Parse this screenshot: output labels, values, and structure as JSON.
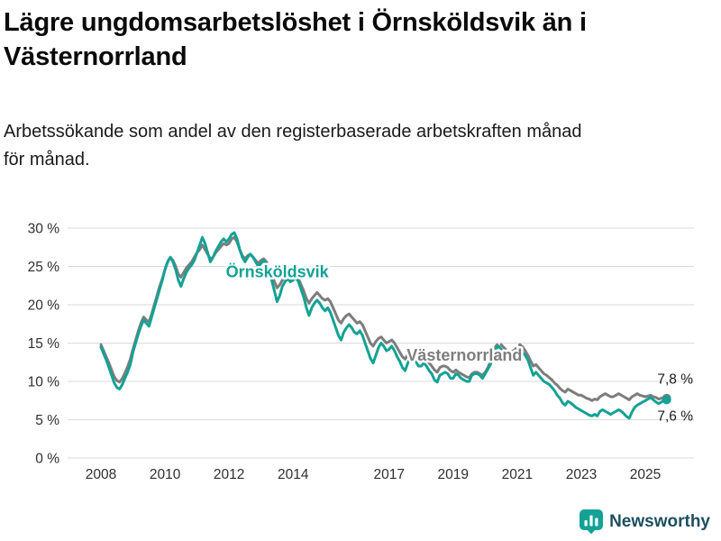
{
  "header": {
    "title": "Lägre ungdomsarbetslöshet i Örnsköldsvik än i Västernorrland",
    "subtitle": "Arbetssökande som andel av den registerbaserade arbetskraften månad för månad."
  },
  "footer": {
    "brand": "Newsworthy",
    "brand_color": "#1d4f60",
    "icon_color": "#14a295"
  },
  "chart_data": {
    "type": "line",
    "unit": "%",
    "cadence": "monthly",
    "x_start": {
      "year": 2008,
      "month": 1
    },
    "x_end": {
      "year": 2025,
      "month": 9
    },
    "ylim": [
      0,
      31.5
    ],
    "grid": "horizontal",
    "legend_position": "inline-labels",
    "yticks": [
      {
        "value": 0,
        "label": "0 %"
      },
      {
        "value": 5,
        "label": "5 %"
      },
      {
        "value": 10,
        "label": "10 %"
      },
      {
        "value": 15,
        "label": "15 %"
      },
      {
        "value": 20,
        "label": "20 %"
      },
      {
        "value": 25,
        "label": "25 %"
      },
      {
        "value": 30,
        "label": "30 %"
      }
    ],
    "xticks": [
      {
        "year": 2008,
        "label": "2008"
      },
      {
        "year": 2010,
        "label": "2010"
      },
      {
        "year": 2012,
        "label": "2012"
      },
      {
        "year": 2014,
        "label": "2014"
      },
      {
        "year": 2017,
        "label": "2017"
      },
      {
        "year": 2019,
        "label": "2019"
      },
      {
        "year": 2021,
        "label": "2021"
      },
      {
        "year": 2023,
        "label": "2023"
      },
      {
        "year": 2025,
        "label": "2025"
      }
    ],
    "annotations": [
      {
        "text": "Örnsköldsvik",
        "year": 2011.9,
        "value": 23.6,
        "color": "#13a295"
      },
      {
        "text": "Västernorrland",
        "year": 2017.55,
        "value": 12.7,
        "color": "#7d7d7d"
      }
    ],
    "series": [
      {
        "name": "Västernorrland",
        "color": "#7d7d7d",
        "end_label": "7,8 %",
        "dash_segment": [
          146,
          158
        ],
        "values": [
          14.8,
          14.0,
          13.2,
          12.4,
          11.5,
          10.6,
          10.1,
          9.9,
          10.4,
          11.1,
          11.9,
          12.9,
          14.2,
          15.4,
          16.6,
          17.6,
          18.4,
          18.0,
          17.8,
          18.8,
          20.0,
          21.2,
          22.4,
          23.4,
          24.6,
          25.6,
          26.2,
          25.8,
          25.0,
          24.0,
          23.6,
          24.2,
          24.8,
          25.2,
          25.6,
          26.2,
          26.8,
          27.2,
          27.8,
          27.2,
          26.6,
          26.0,
          26.2,
          26.8,
          27.2,
          27.6,
          28.0,
          27.8,
          28.0,
          28.6,
          28.8,
          28.2,
          27.2,
          26.4,
          26.0,
          26.4,
          26.6,
          26.2,
          25.8,
          25.4,
          25.8,
          26.0,
          25.6,
          24.8,
          24.0,
          23.0,
          22.2,
          22.6,
          23.2,
          23.6,
          23.8,
          23.4,
          23.6,
          23.8,
          23.4,
          22.6,
          21.8,
          20.8,
          20.2,
          20.8,
          21.2,
          21.6,
          21.2,
          20.8,
          20.6,
          20.8,
          20.4,
          19.6,
          18.8,
          18.0,
          17.6,
          18.2,
          18.6,
          18.8,
          18.4,
          18.0,
          17.6,
          17.8,
          17.4,
          16.6,
          15.8,
          15.0,
          14.6,
          15.2,
          15.6,
          15.8,
          15.4,
          15.0,
          15.2,
          15.4,
          15.0,
          14.4,
          13.8,
          13.2,
          12.9,
          13.5,
          13.8,
          13.8,
          13.4,
          13.0,
          13.0,
          13.2,
          12.9,
          12.4,
          12.0,
          11.5,
          11.2,
          11.8,
          12.0,
          12.0,
          11.8,
          11.4,
          11.2,
          11.5,
          11.2,
          11.0,
          10.8,
          10.6,
          10.5,
          11.0,
          11.2,
          11.2,
          11.0,
          10.8,
          11.2,
          11.8,
          12.6,
          13.8,
          14.6,
          15.0,
          14.8,
          14.4,
          14.1,
          13.9,
          13.9,
          14.1,
          14.5,
          14.8,
          14.5,
          14.0,
          13.4,
          12.7,
          12.0,
          12.2,
          11.8,
          11.4,
          11.0,
          10.8,
          10.5,
          10.2,
          9.8,
          9.5,
          9.1,
          8.8,
          8.6,
          9.0,
          8.8,
          8.6,
          8.4,
          8.2,
          8.2,
          8.0,
          7.8,
          7.7,
          7.5,
          7.7,
          7.6,
          8.0,
          8.2,
          8.4,
          8.2,
          8.0,
          8.0,
          8.2,
          8.4,
          8.2,
          8.0,
          7.8,
          7.6,
          8.0,
          8.2,
          8.4,
          8.2,
          8.1,
          8.0,
          8.1,
          8.2,
          8.0,
          7.9,
          7.7,
          7.8,
          7.9,
          7.8
        ]
      },
      {
        "name": "Örnsköldsvik",
        "color": "#13a295",
        "end_label": "7,6 %",
        "values": [
          14.5,
          13.6,
          12.8,
          11.8,
          10.8,
          9.8,
          9.2,
          9.0,
          9.6,
          10.4,
          11.2,
          12.2,
          13.8,
          15.0,
          16.2,
          17.2,
          18.0,
          17.6,
          17.2,
          18.4,
          19.6,
          20.8,
          22.0,
          23.2,
          24.6,
          25.6,
          26.2,
          25.6,
          24.6,
          23.2,
          22.4,
          23.4,
          24.2,
          24.8,
          25.2,
          25.8,
          26.8,
          27.8,
          28.8,
          28.0,
          26.8,
          25.6,
          26.2,
          27.0,
          27.6,
          28.2,
          28.6,
          28.2,
          28.6,
          29.2,
          29.4,
          28.6,
          27.2,
          26.2,
          25.6,
          26.2,
          26.6,
          26.2,
          25.6,
          25.0,
          25.4,
          25.8,
          25.2,
          24.2,
          23.2,
          21.8,
          20.4,
          21.2,
          22.4,
          23.0,
          23.4,
          23.0,
          23.2,
          23.6,
          23.0,
          22.0,
          21.0,
          19.6,
          18.6,
          19.6,
          20.2,
          20.6,
          20.2,
          19.6,
          19.2,
          19.6,
          19.0,
          18.0,
          17.0,
          16.0,
          15.4,
          16.4,
          17.0,
          17.4,
          17.0,
          16.4,
          16.2,
          16.6,
          16.0,
          15.0,
          14.0,
          13.0,
          12.4,
          13.4,
          14.4,
          15.0,
          14.6,
          14.0,
          14.2,
          14.6,
          14.0,
          13.2,
          12.6,
          11.8,
          11.4,
          12.4,
          13.0,
          13.0,
          12.6,
          12.0,
          12.0,
          12.4,
          12.0,
          11.4,
          11.0,
          10.2,
          9.9,
          10.8,
          11.0,
          11.2,
          11.0,
          10.4,
          10.4,
          11.0,
          10.8,
          10.4,
          10.2,
          10.0,
          10.0,
          10.8,
          11.0,
          11.0,
          10.8,
          10.4,
          11.0,
          11.6,
          12.2,
          13.4,
          14.2,
          14.6,
          14.2,
          13.8,
          13.4,
          13.0,
          13.0,
          13.4,
          13.8,
          14.2,
          13.8,
          13.4,
          12.8,
          11.8,
          10.8,
          11.2,
          10.8,
          10.4,
          10.0,
          9.8,
          9.6,
          9.2,
          8.8,
          8.2,
          7.8,
          7.2,
          6.9,
          7.4,
          7.2,
          6.9,
          6.6,
          6.4,
          6.2,
          6.0,
          5.8,
          5.6,
          5.5,
          5.7,
          5.5,
          6.1,
          6.3,
          6.1,
          5.9,
          5.7,
          5.9,
          6.1,
          6.3,
          6.1,
          5.8,
          5.4,
          5.2,
          6.0,
          6.6,
          6.9,
          7.1,
          7.3,
          7.5,
          7.7,
          7.9,
          7.6,
          7.3,
          7.1,
          7.3,
          7.5,
          7.6
        ]
      }
    ]
  }
}
